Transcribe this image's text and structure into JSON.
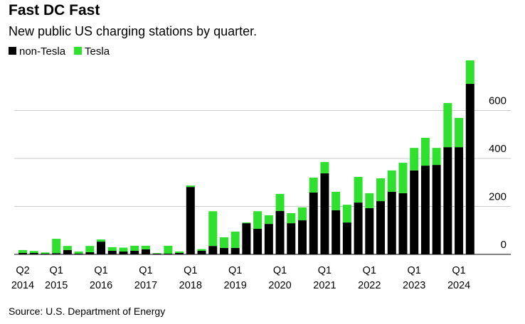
{
  "chart_data": {
    "type": "bar",
    "stacked": true,
    "title": "Fast DC Fast",
    "subtitle": "New public US charging stations by quarter.",
    "source": "Source: U.S. Department of Energy",
    "categories": [
      "Q2\n2014",
      null,
      null,
      "Q1\n2015",
      null,
      null,
      null,
      "Q1\n2016",
      null,
      null,
      null,
      "Q1\n2017",
      null,
      null,
      null,
      "Q1\n2018",
      null,
      null,
      null,
      "Q1\n2019",
      null,
      null,
      null,
      "Q1\n2020",
      null,
      null,
      null,
      "Q1\n2021",
      null,
      null,
      null,
      "Q1\n2022",
      null,
      null,
      null,
      "Q1\n2023",
      null,
      null,
      null,
      "Q1\n2024",
      null
    ],
    "series": [
      {
        "name": "non-Tesla",
        "color": "#000000",
        "values": [
          6,
          6,
          3,
          5,
          18,
          3,
          9,
          53,
          15,
          12,
          15,
          21,
          3,
          3,
          6,
          281,
          15,
          35,
          27,
          27,
          130,
          107,
          127,
          181,
          130,
          142,
          258,
          338,
          184,
          133,
          216,
          193,
          222,
          261,
          255,
          350,
          370,
          373,
          447,
          447,
          711
        ]
      },
      {
        "name": "Tesla",
        "color": "#2fe02f",
        "values": [
          12,
          8,
          5,
          60,
          17,
          9,
          26,
          9,
          15,
          16,
          21,
          15,
          2,
          33,
          6,
          6,
          7,
          145,
          44,
          68,
          3,
          73,
          36,
          71,
          42,
          54,
          62,
          47,
          77,
          74,
          107,
          62,
          95,
          89,
          127,
          94,
          116,
          71,
          184,
          122,
          98
        ]
      }
    ],
    "ylim": [
      0,
      820
    ],
    "yticks": [
      0,
      200,
      400,
      600
    ],
    "grid": true,
    "legend": "top-left"
  }
}
